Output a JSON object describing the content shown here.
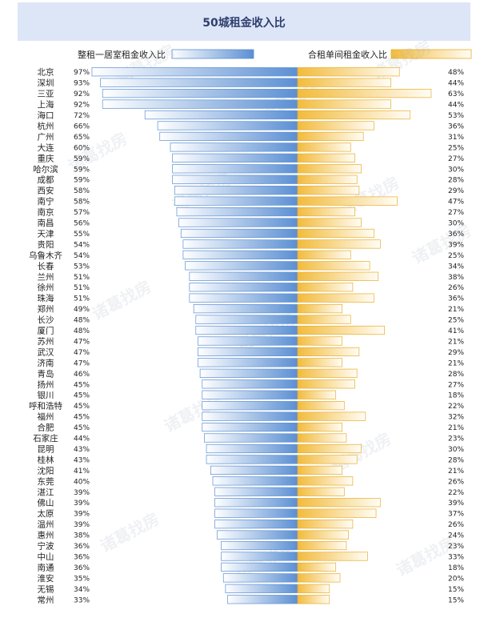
{
  "chart_data": {
    "type": "bar",
    "title": "50城租金收入比",
    "series": [
      {
        "name": "整租一居室租金收入比",
        "color": "#5b8fd3",
        "values": [
          97,
          93,
          92,
          92,
          72,
          66,
          65,
          60,
          59,
          59,
          59,
          58,
          58,
          57,
          56,
          55,
          54,
          54,
          53,
          51,
          51,
          51,
          49,
          48,
          48,
          47,
          47,
          47,
          46,
          45,
          45,
          45,
          45,
          45,
          44,
          43,
          43,
          41,
          40,
          39,
          39,
          39,
          39,
          38,
          36,
          36,
          36,
          35,
          34,
          33
        ]
      },
      {
        "name": "合租单间租金收入比",
        "color": "#f2bb3c",
        "values": [
          48,
          44,
          63,
          44,
          53,
          36,
          31,
          25,
          27,
          30,
          28,
          29,
          47,
          27,
          30,
          36,
          39,
          25,
          34,
          38,
          26,
          36,
          21,
          25,
          41,
          21,
          29,
          21,
          28,
          27,
          18,
          22,
          32,
          21,
          23,
          30,
          28,
          21,
          26,
          22,
          39,
          37,
          26,
          24,
          23,
          33,
          18,
          20,
          15,
          15
        ]
      }
    ],
    "categories": [
      "北京",
      "深圳",
      "三亚",
      "上海",
      "海口",
      "杭州",
      "广州",
      "大连",
      "重庆",
      "哈尔滨",
      "成都",
      "西安",
      "南宁",
      "南京",
      "南昌",
      "天津",
      "贵阳",
      "乌鲁木齐",
      "长春",
      "兰州",
      "徐州",
      "珠海",
      "郑州",
      "长沙",
      "厦门",
      "苏州",
      "武汉",
      "济南",
      "青岛",
      "扬州",
      "银川",
      "呼和浩特",
      "福州",
      "合肥",
      "石家庄",
      "昆明",
      "桂林",
      "沈阳",
      "东莞",
      "湛江",
      "佛山",
      "太原",
      "温州",
      "惠州",
      "宁波",
      "中山",
      "南通",
      "淮安",
      "无锡",
      "常州"
    ],
    "left_labels": [
      "97%",
      "93%",
      "92%",
      "92%",
      "72%",
      "66%",
      "65%",
      "60%",
      "59%",
      "59%",
      "59%",
      "58%",
      "58%",
      "57%",
      "56%",
      "55%",
      "54%",
      "54%",
      "53%",
      "51%",
      "51%",
      "51%",
      "49%",
      "48%",
      "48%",
      "47%",
      "47%",
      "47%",
      "46%",
      "45%",
      "45%",
      "45%",
      "45%",
      "45%",
      "44%",
      "43%",
      "43%",
      "41%",
      "40%",
      "39%",
      "39%",
      "39%",
      "39%",
      "38%",
      "36%",
      "36%",
      "36%",
      "35%",
      "34%",
      "33%"
    ],
    "right_labels": [
      "48%",
      "44%",
      "63%",
      "44%",
      "53%",
      "36%",
      "31%",
      "25%",
      "27%",
      "30%",
      "28%",
      "29%",
      "47%",
      "27%",
      "30%",
      "36%",
      "39%",
      "25%",
      "34%",
      "38%",
      "26%",
      "36%",
      "21%",
      "25%",
      "41%",
      "21%",
      "29%",
      "21%",
      "28%",
      "27%",
      "18%",
      "22%",
      "32%",
      "21%",
      "23%",
      "30%",
      "28%",
      "21%",
      "26%",
      "22%",
      "39%",
      "37%",
      "26%",
      "24%",
      "23%",
      "33%",
      "18%",
      "20%",
      "15%",
      "15%"
    ],
    "xlim": [
      0,
      100
    ],
    "legend_position": "top",
    "grid": false
  },
  "watermark": "诸葛找房",
  "colors": {
    "title_band": "#dde6f7",
    "title_text": "#2f3e6e",
    "left_bar_dark": "#5b8fd3",
    "left_bar_light": "#ffffff",
    "right_bar_dark": "#f2bb3c",
    "right_bar_light": "#fffdf6",
    "text": "#222222"
  }
}
